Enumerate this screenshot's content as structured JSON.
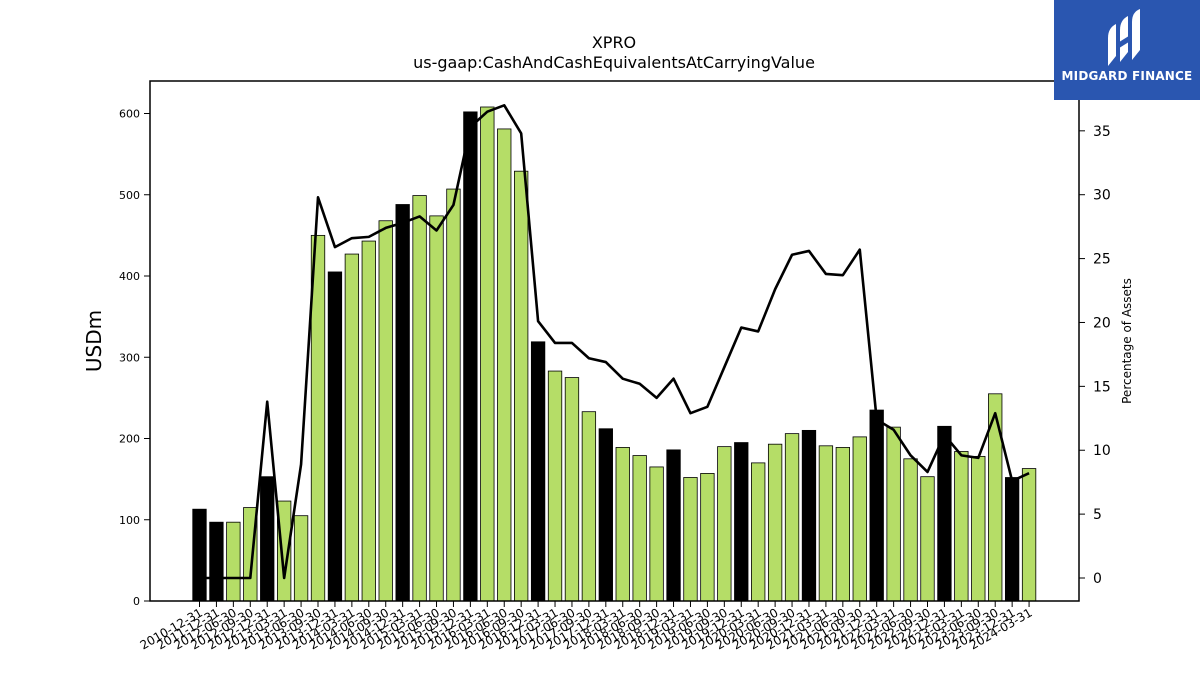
{
  "logo": {
    "text": "MIDGARD FINANCE",
    "icon": "midgard-logo-icon"
  },
  "chart_data": {
    "type": "bar",
    "title": "XPRO",
    "subtitle": "us-gaap:CashAndCashEquivalentsAtCarryingValue",
    "ylabel": "USDm",
    "ylabel_right": "Percentage of Assets",
    "ylim": [
      0,
      640
    ],
    "ylim_right": [
      -1.8,
      38.9
    ],
    "yticks": [
      "0",
      "100",
      "200",
      "300",
      "400",
      "500",
      "600"
    ],
    "yticks_right": [
      "0",
      "5",
      "10",
      "15",
      "20",
      "25",
      "30",
      "35"
    ],
    "grid": false,
    "colors": {
      "annual": "#000000",
      "quarter": "#b5dd67",
      "line": "#000000"
    },
    "categories": [
      "2010-12-31",
      "2011-12-31",
      "2012-06-30",
      "2012-09-30",
      "2012-12-31",
      "2013-03-31",
      "2013-06-30",
      "2013-09-30",
      "2013-12-31",
      "2014-03-31",
      "2014-06-30",
      "2014-09-30",
      "2014-12-31",
      "2015-03-31",
      "2015-06-30",
      "2015-09-30",
      "2015-12-31",
      "2016-03-31",
      "2016-06-30",
      "2016-09-30",
      "2016-12-31",
      "2017-03-31",
      "2017-06-30",
      "2017-09-30",
      "2017-12-31",
      "2018-03-31",
      "2018-06-30",
      "2018-09-30",
      "2018-12-31",
      "2019-03-31",
      "2019-06-30",
      "2019-09-30",
      "2019-12-31",
      "2020-03-31",
      "2020-06-30",
      "2020-09-30",
      "2020-12-31",
      "2021-03-31",
      "2021-06-30",
      "2021-09-30",
      "2021-12-31",
      "2022-03-31",
      "2022-06-30",
      "2022-09-30",
      "2022-12-31",
      "2023-03-31",
      "2023-06-30",
      "2023-09-30",
      "2023-12-31",
      "2024-03-31"
    ],
    "series": [
      {
        "values": [
          113,
          97,
          97,
          115,
          153,
          123,
          105,
          450,
          405,
          427,
          443,
          468,
          488,
          499,
          474,
          507,
          602,
          608,
          581,
          529,
          319,
          283,
          275,
          233,
          212,
          189,
          179,
          165,
          186,
          152,
          157,
          190,
          195,
          170,
          193,
          206,
          210,
          191,
          189,
          202,
          235,
          214,
          175,
          153,
          215,
          184,
          178,
          255,
          152,
          163
        ],
        "annual": [
          true,
          true,
          false,
          false,
          true,
          false,
          false,
          false,
          true,
          false,
          false,
          false,
          true,
          false,
          false,
          false,
          true,
          false,
          false,
          false,
          true,
          false,
          false,
          false,
          true,
          false,
          false,
          false,
          true,
          false,
          false,
          false,
          true,
          false,
          false,
          false,
          true,
          false,
          false,
          false,
          true,
          false,
          false,
          false,
          true,
          false,
          false,
          false,
          true,
          false
        ]
      },
      {
        "axis": "right",
        "type": "line",
        "values": [
          0,
          0,
          0,
          0,
          13.8,
          0,
          8.9,
          29.8,
          25.9,
          26.6,
          26.7,
          27.4,
          27.8,
          28.3,
          27.2,
          29.2,
          35.3,
          36.5,
          37.0,
          34.8,
          20.1,
          18.4,
          18.4,
          17.2,
          16.9,
          15.6,
          15.2,
          14.1,
          15.6,
          12.9,
          13.4,
          16.5,
          19.6,
          19.3,
          22.6,
          25.3,
          25.6,
          23.8,
          23.7,
          25.7,
          12.4,
          11.6,
          9.6,
          8.3,
          11.2,
          9.6,
          9.4,
          12.9,
          7.6,
          8.2
        ]
      }
    ]
  }
}
